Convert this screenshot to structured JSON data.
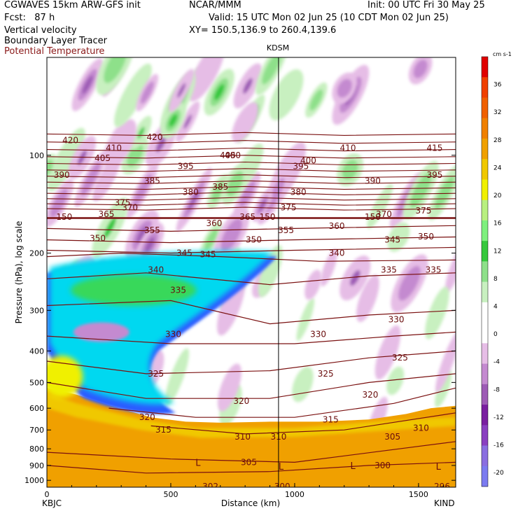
{
  "header": {
    "left_line1": "CGWAVES 15km ARW-GFS init",
    "left_line2": "Fcst:   87 h",
    "center_line1": "NCAR/MMM",
    "right_line1": "Init: 00 UTC Fri 30 May 25",
    "valid_line": "Valid: 15 UTC Mon 02 Jun 25 (10 CDT Mon 02 Jun 25)",
    "field1": "Vertical velocity",
    "field2": "Boundary Layer Tracer",
    "field3": "Potential Temperature",
    "xy_line": "XY= 150.5,136.9 to 260.4,139.6"
  },
  "chart_data": {
    "type": "heatmap",
    "title": "KDSM",
    "xlabel": "Distance (km)",
    "ylabel": "Pressure (hPa), log scale",
    "x_range": [
      0,
      1650
    ],
    "y_range_hpa": [
      1050,
      50
    ],
    "y_scale": "log",
    "x_ticks": [
      0,
      500,
      1000,
      1500
    ],
    "x_tick_labels": [
      "0",
      "500",
      "1000",
      "1500"
    ],
    "y_ticks": [
      100,
      200,
      300,
      400,
      500,
      600,
      700,
      800,
      900,
      1000
    ],
    "y_tick_labels": [
      "100",
      "200",
      "300",
      "400",
      "500",
      "600",
      "700",
      "800",
      "900",
      "1000"
    ],
    "endpoint_left": "KBJC",
    "endpoint_right": "KIND",
    "marker_x_km": 935,
    "marker_label": "KDSM",
    "colorbar": {
      "unit": "cm s-1",
      "levels": [
        -20,
        -16,
        -12,
        -8,
        -4,
        0,
        4,
        8,
        12,
        16,
        20,
        24,
        28,
        32,
        36
      ],
      "level_labels": [
        "-20",
        "-16",
        "-12",
        "-8",
        "-4",
        "0",
        "4",
        "8",
        "12",
        "16",
        "20",
        "24",
        "28",
        "32",
        "36"
      ],
      "colors": [
        "#7b7bf0",
        "#8a6ee0",
        "#8a3fc0",
        "#7a1fa0",
        "#9d5bb5",
        "#c48ad0",
        "#e6bde6",
        "#ffffff",
        "#ffffff",
        "#c8f0c0",
        "#8ee08a",
        "#35c83c",
        "#7ef07e",
        "#b8f080",
        "#f0f000",
        "#f0c800",
        "#f0a000",
        "#f08000",
        "#f06000",
        "#f04000",
        "#e00000"
      ]
    },
    "isentrope_labels": [
      {
        "x": 95,
        "p": 90,
        "t": "420"
      },
      {
        "x": 435,
        "p": 88,
        "t": "420"
      },
      {
        "x": 270,
        "p": 95,
        "t": "410"
      },
      {
        "x": 1215,
        "p": 95,
        "t": "410"
      },
      {
        "x": 1565,
        "p": 95,
        "t": "415"
      },
      {
        "x": 225,
        "p": 102,
        "t": "405"
      },
      {
        "x": 730,
        "p": 100,
        "t": "405"
      },
      {
        "x": 60,
        "p": 115,
        "t": "390"
      },
      {
        "x": 560,
        "p": 108,
        "t": "395"
      },
      {
        "x": 750,
        "p": 100,
        "t": "400"
      },
      {
        "x": 1055,
        "p": 104,
        "t": "400"
      },
      {
        "x": 1025,
        "p": 108,
        "t": "395"
      },
      {
        "x": 1565,
        "p": 115,
        "t": "395"
      },
      {
        "x": 425,
        "p": 120,
        "t": "385"
      },
      {
        "x": 700,
        "p": 125,
        "t": "385"
      },
      {
        "x": 1315,
        "p": 120,
        "t": "390"
      },
      {
        "x": 305,
        "p": 140,
        "t": "375"
      },
      {
        "x": 335,
        "p": 145,
        "t": "370"
      },
      {
        "x": 580,
        "p": 130,
        "t": "380"
      },
      {
        "x": 1015,
        "p": 130,
        "t": "380"
      },
      {
        "x": 975,
        "p": 145,
        "t": "375"
      },
      {
        "x": 1520,
        "p": 148,
        "t": "375"
      },
      {
        "x": 240,
        "p": 152,
        "t": "365"
      },
      {
        "x": 810,
        "p": 155,
        "t": "365"
      },
      {
        "x": 1360,
        "p": 152,
        "t": "370"
      },
      {
        "x": 890,
        "p": 155,
        "t": "150"
      },
      {
        "x": 70,
        "p": 155,
        "t": "150"
      },
      {
        "x": 1315,
        "p": 155,
        "t": "150"
      },
      {
        "x": 425,
        "p": 170,
        "t": "355"
      },
      {
        "x": 675,
        "p": 162,
        "t": "360"
      },
      {
        "x": 965,
        "p": 170,
        "t": "355"
      },
      {
        "x": 1170,
        "p": 165,
        "t": "360"
      },
      {
        "x": 205,
        "p": 180,
        "t": "350"
      },
      {
        "x": 835,
        "p": 182,
        "t": "350"
      },
      {
        "x": 1395,
        "p": 182,
        "t": "345"
      },
      {
        "x": 1530,
        "p": 178,
        "t": "350"
      },
      {
        "x": 555,
        "p": 200,
        "t": "345"
      },
      {
        "x": 650,
        "p": 202,
        "t": "345"
      },
      {
        "x": 1170,
        "p": 200,
        "t": "340"
      },
      {
        "x": 440,
        "p": 225,
        "t": "340"
      },
      {
        "x": 1380,
        "p": 225,
        "t": "335"
      },
      {
        "x": 1560,
        "p": 225,
        "t": "335"
      },
      {
        "x": 530,
        "p": 260,
        "t": "335"
      },
      {
        "x": 510,
        "p": 355,
        "t": "330"
      },
      {
        "x": 1095,
        "p": 355,
        "t": "330"
      },
      {
        "x": 1410,
        "p": 320,
        "t": "330"
      },
      {
        "x": 440,
        "p": 470,
        "t": "325"
      },
      {
        "x": 1125,
        "p": 470,
        "t": "325"
      },
      {
        "x": 1425,
        "p": 420,
        "t": "325"
      },
      {
        "x": 785,
        "p": 570,
        "t": "320"
      },
      {
        "x": 1305,
        "p": 545,
        "t": "320"
      },
      {
        "x": 405,
        "p": 640,
        "t": "320"
      },
      {
        "x": 470,
        "p": 700,
        "t": "315"
      },
      {
        "x": 1145,
        "p": 650,
        "t": "315"
      },
      {
        "x": 790,
        "p": 735,
        "t": "310"
      },
      {
        "x": 935,
        "p": 735,
        "t": "310"
      },
      {
        "x": 1395,
        "p": 735,
        "t": "305"
      },
      {
        "x": 1510,
        "p": 690,
        "t": "310"
      },
      {
        "x": 815,
        "p": 880,
        "t": "305"
      },
      {
        "x": 1355,
        "p": 900,
        "t": "300"
      },
      {
        "x": 660,
        "p": 1045,
        "t": "302"
      },
      {
        "x": 950,
        "p": 1045,
        "t": "300"
      },
      {
        "x": 1595,
        "p": 1045,
        "t": "296"
      }
    ],
    "low_markers": [
      {
        "x": 610,
        "p": 880,
        "t": "L"
      },
      {
        "x": 945,
        "p": 905,
        "t": "L"
      },
      {
        "x": 1235,
        "p": 900,
        "t": "L"
      },
      {
        "x": 1580,
        "p": 905,
        "t": "L"
      }
    ]
  }
}
